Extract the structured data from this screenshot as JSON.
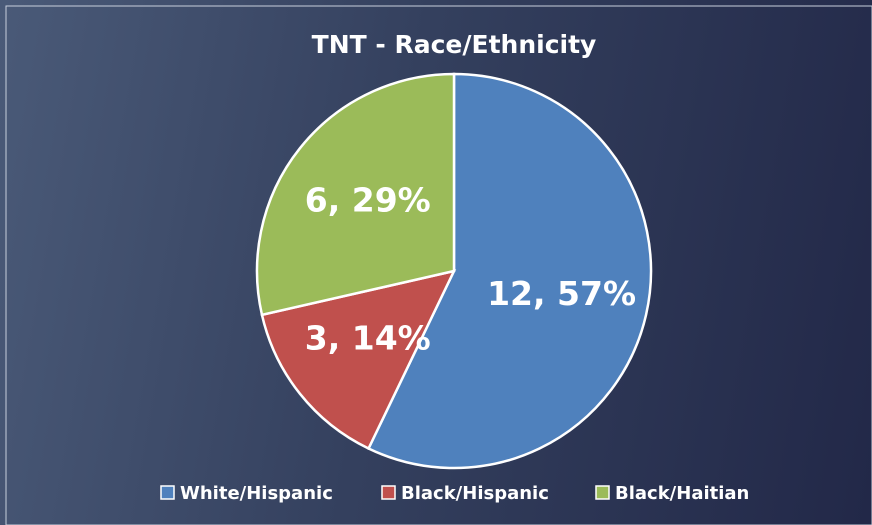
{
  "chart_data": {
    "type": "pie",
    "title": "TNT - Race/Ethnicity",
    "categories": [
      "White/Hispanic",
      "Black/Hispanic",
      "Black/Haitian"
    ],
    "values": [
      12,
      3,
      6
    ],
    "value_labels": [
      "12, 57%",
      "3, 14%",
      "6, 29%"
    ],
    "colors": [
      "#4f81bd",
      "#c0504d",
      "#9bbb59"
    ],
    "legend": "bottom"
  }
}
